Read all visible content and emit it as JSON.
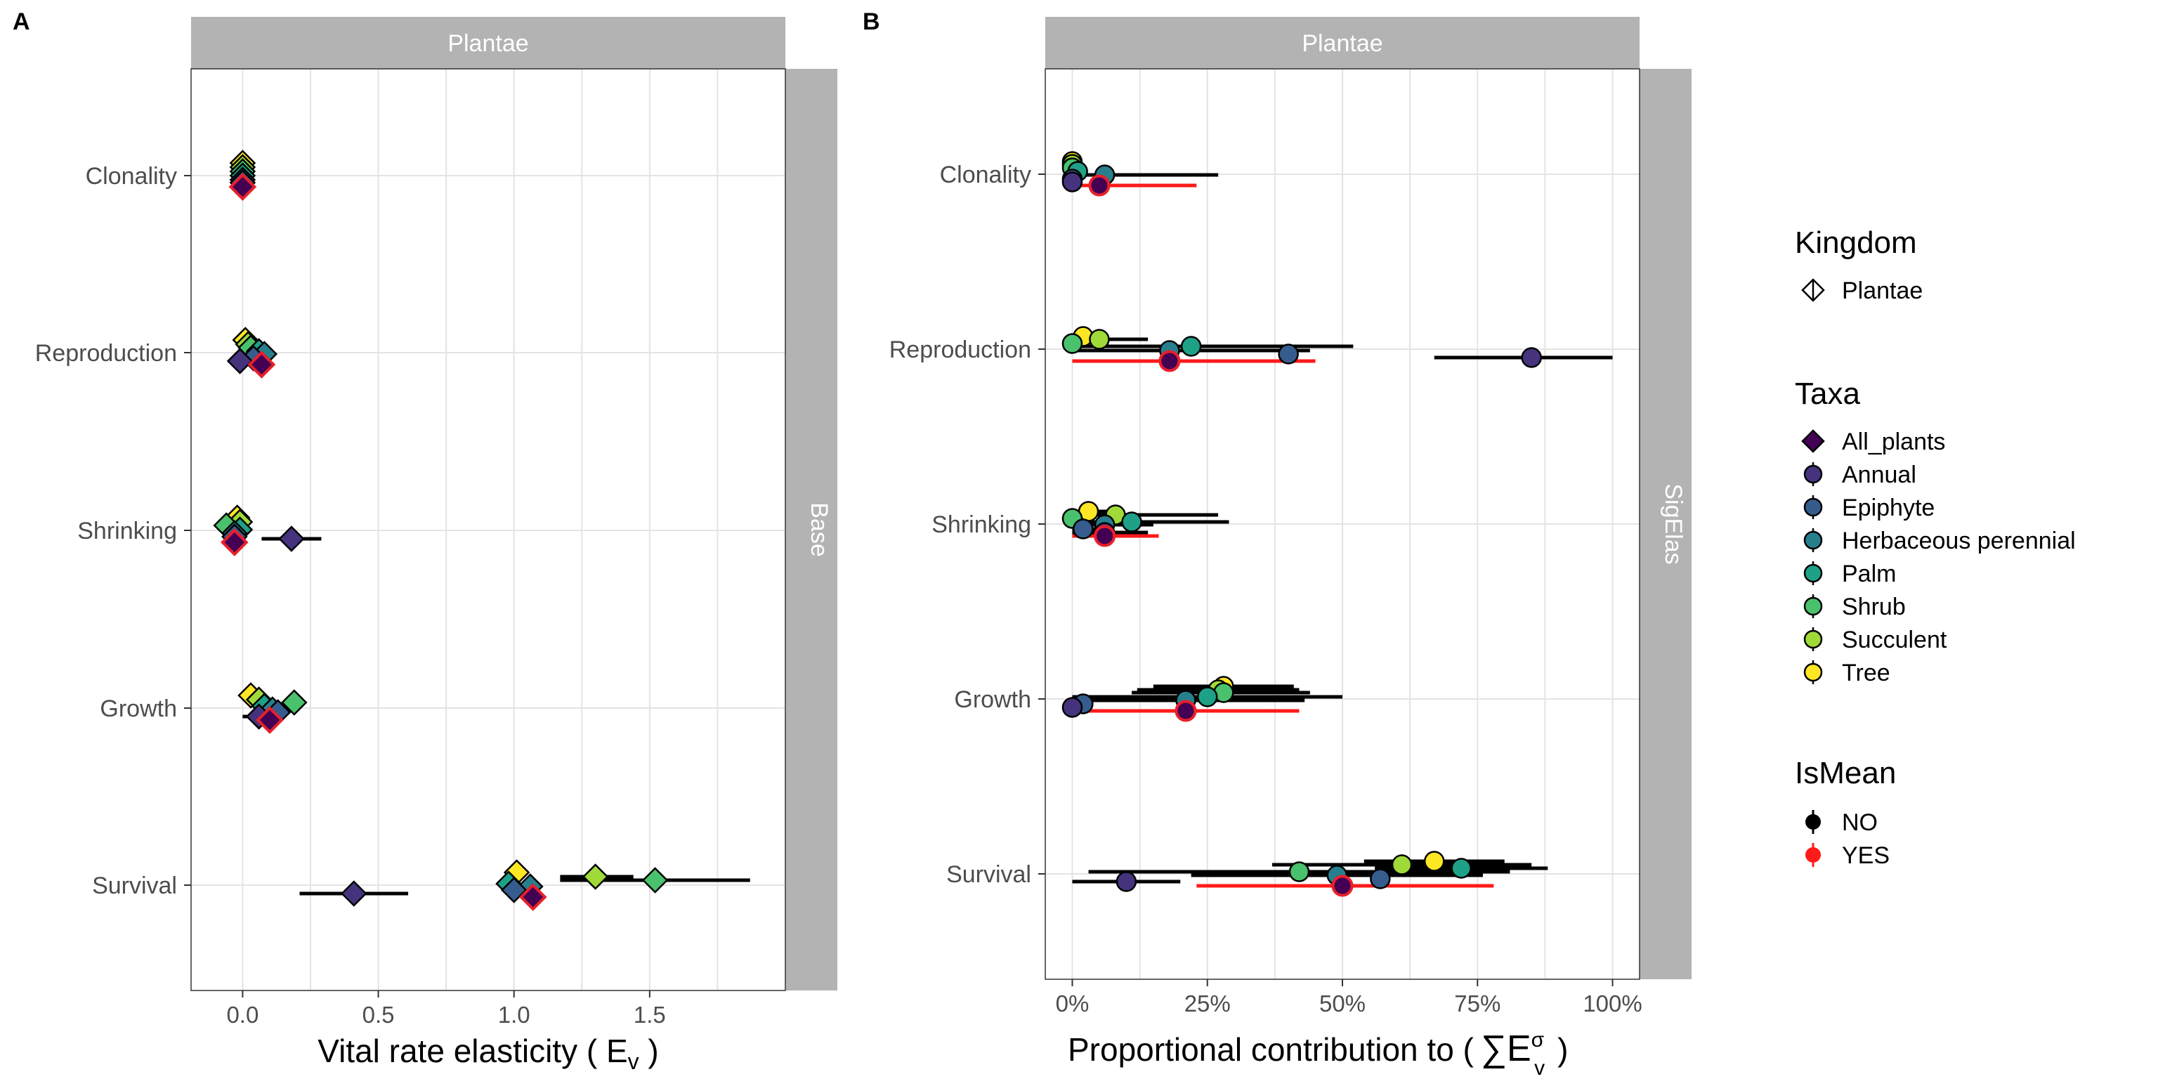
{
  "panel_labels": [
    "A",
    "B"
  ],
  "chart_data": [
    {
      "type": "scatter",
      "panel": "A",
      "strip_top": "Plantae",
      "strip_right": "Base",
      "xlabel": "Vital rate elasticity ( E",
      "xlabel_sub": "v",
      "xlabel_end": " )",
      "xlim": [
        -0.19,
        2.0
      ],
      "x_ticks": [
        0.0,
        0.5,
        1.0,
        1.5
      ],
      "x_tick_labels": [
        "0.0",
        "0.5",
        "1.0",
        "1.5"
      ],
      "categories": [
        "Clonality",
        "Reproduction",
        "Shrinking",
        "Growth",
        "Survival"
      ],
      "marker": "diamond",
      "points": [
        {
          "cat": "Clonality",
          "taxa": "Tree",
          "x": 0.0,
          "off": 0.18
        },
        {
          "cat": "Clonality",
          "taxa": "Succulent",
          "x": 0.0,
          "off": 0.12
        },
        {
          "cat": "Clonality",
          "taxa": "Shrub",
          "x": 0.0,
          "off": 0.06
        },
        {
          "cat": "Clonality",
          "taxa": "Palm",
          "x": 0.0,
          "off": 0.0
        },
        {
          "cat": "Clonality",
          "taxa": "Herbaceous perennial",
          "x": 0.0,
          "off": -0.06
        },
        {
          "cat": "Clonality",
          "taxa": "Epiphyte",
          "x": 0.0,
          "off": -0.1
        },
        {
          "cat": "Clonality",
          "taxa": "All_plants",
          "x": 0.0,
          "off": -0.16,
          "mean": true
        },
        {
          "cat": "Reproduction",
          "taxa": "Tree",
          "x": 0.01,
          "off": 0.18
        },
        {
          "cat": "Reproduction",
          "taxa": "Succulent",
          "x": 0.02,
          "off": 0.12
        },
        {
          "cat": "Reproduction",
          "taxa": "Shrub",
          "x": 0.03,
          "off": 0.07
        },
        {
          "cat": "Reproduction",
          "taxa": "Palm",
          "x": 0.06,
          "off": 0.02
        },
        {
          "cat": "Reproduction",
          "taxa": "Herbaceous perennial",
          "x": 0.08,
          "off": -0.02
        },
        {
          "cat": "Reproduction",
          "taxa": "Epiphyte",
          "x": 0.04,
          "off": -0.08
        },
        {
          "cat": "Reproduction",
          "taxa": "Annual",
          "x": -0.01,
          "off": -0.12
        },
        {
          "cat": "Reproduction",
          "taxa": "All_plants",
          "x": 0.07,
          "off": -0.17,
          "mean": true
        },
        {
          "cat": "Shrinking",
          "taxa": "Tree",
          "x": -0.02,
          "off": 0.18
        },
        {
          "cat": "Shrinking",
          "taxa": "Succulent",
          "x": -0.01,
          "off": 0.12
        },
        {
          "cat": "Shrinking",
          "taxa": "Shrub",
          "x": -0.06,
          "off": 0.07
        },
        {
          "cat": "Shrinking",
          "taxa": "Palm",
          "x": -0.01,
          "off": 0.01
        },
        {
          "cat": "Shrinking",
          "taxa": "Herbaceous perennial",
          "x": -0.03,
          "off": -0.04
        },
        {
          "cat": "Shrinking",
          "taxa": "Epiphyte",
          "x": -0.03,
          "off": -0.09
        },
        {
          "cat": "Shrinking",
          "taxa": "Annual",
          "x": 0.18,
          "off": -0.12,
          "lo": 0.07,
          "hi": 0.29
        },
        {
          "cat": "Shrinking",
          "taxa": "All_plants",
          "x": -0.03,
          "off": -0.17,
          "mean": true
        },
        {
          "cat": "Growth",
          "taxa": "Tree",
          "x": 0.03,
          "off": 0.18
        },
        {
          "cat": "Growth",
          "taxa": "Succulent",
          "x": 0.06,
          "off": 0.12
        },
        {
          "cat": "Growth",
          "taxa": "Shrub",
          "x": 0.19,
          "off": 0.08
        },
        {
          "cat": "Growth",
          "taxa": "Palm",
          "x": 0.08,
          "off": 0.03
        },
        {
          "cat": "Growth",
          "taxa": "Herbaceous perennial",
          "x": 0.11,
          "off": -0.02
        },
        {
          "cat": "Growth",
          "taxa": "Epiphyte",
          "x": 0.13,
          "off": -0.06
        },
        {
          "cat": "Growth",
          "taxa": "Annual",
          "x": 0.06,
          "off": -0.12,
          "lo": 0.0,
          "hi": 0.09
        },
        {
          "cat": "Growth",
          "taxa": "All_plants",
          "x": 0.1,
          "off": -0.17,
          "mean": true
        },
        {
          "cat": "Survival",
          "taxa": "Tree",
          "x": 1.01,
          "off": 0.18
        },
        {
          "cat": "Survival",
          "taxa": "Succulent",
          "x": 1.3,
          "off": 0.12,
          "lo": 1.17,
          "hi": 1.44
        },
        {
          "cat": "Survival",
          "taxa": "Shrub",
          "x": 1.52,
          "off": 0.07,
          "lo": 1.17,
          "hi": 1.87
        },
        {
          "cat": "Survival",
          "taxa": "Palm",
          "x": 0.98,
          "off": 0.02
        },
        {
          "cat": "Survival",
          "taxa": "Herbaceous perennial",
          "x": 1.06,
          "off": -0.02
        },
        {
          "cat": "Survival",
          "taxa": "Epiphyte",
          "x": 1.0,
          "off": -0.07
        },
        {
          "cat": "Survival",
          "taxa": "Annual",
          "x": 0.41,
          "off": -0.12,
          "lo": 0.21,
          "hi": 0.61
        },
        {
          "cat": "Survival",
          "taxa": "All_plants",
          "x": 1.07,
          "off": -0.17,
          "mean": true
        }
      ]
    },
    {
      "type": "scatter",
      "panel": "B",
      "strip_top": "Plantae",
      "strip_right": "SigElas",
      "xlabel": "Proportional contribution to (",
      "xlabel_sym": "∑E",
      "xlabel_sup": "σ",
      "xlabel_sub": "v",
      "xlabel_end": ")",
      "xlim": [
        -0.05,
        1.05
      ],
      "x_ticks": [
        0.0,
        0.25,
        0.5,
        0.75,
        1.0
      ],
      "x_tick_labels": [
        "0%",
        "25%",
        "50%",
        "75%",
        "100%"
      ],
      "categories": [
        "Clonality",
        "Reproduction",
        "Shrinking",
        "Growth",
        "Survival"
      ],
      "marker": "circle",
      "points": [
        {
          "cat": "Clonality",
          "taxa": "Tree",
          "x": 0.0,
          "off": 0.18
        },
        {
          "cat": "Clonality",
          "taxa": "Succulent",
          "x": 0.0,
          "off": 0.14
        },
        {
          "cat": "Clonality",
          "taxa": "Shrub",
          "x": 0.0,
          "off": 0.09
        },
        {
          "cat": "Clonality",
          "taxa": "Palm",
          "x": 0.01,
          "off": 0.04
        },
        {
          "cat": "Clonality",
          "taxa": "Herbaceous perennial",
          "x": 0.06,
          "off": -0.01,
          "lo": 0.0,
          "hi": 0.27
        },
        {
          "cat": "Clonality",
          "taxa": "Epiphyte",
          "x": 0.0,
          "off": -0.07
        },
        {
          "cat": "Clonality",
          "taxa": "Annual",
          "x": 0.0,
          "off": -0.11
        },
        {
          "cat": "Clonality",
          "taxa": "All_plants",
          "x": 0.05,
          "off": -0.16,
          "lo": 0.0,
          "hi": 0.23,
          "mean": true
        },
        {
          "cat": "Reproduction",
          "taxa": "Tree",
          "x": 0.02,
          "off": 0.18
        },
        {
          "cat": "Reproduction",
          "taxa": "Succulent",
          "x": 0.05,
          "off": 0.14,
          "lo": 0.0,
          "hi": 0.14
        },
        {
          "cat": "Reproduction",
          "taxa": "Shrub",
          "x": 0.0,
          "off": 0.08
        },
        {
          "cat": "Reproduction",
          "taxa": "Palm",
          "x": 0.22,
          "off": 0.04,
          "lo": 0.0,
          "hi": 0.52
        },
        {
          "cat": "Reproduction",
          "taxa": "Herbaceous perennial",
          "x": 0.18,
          "off": -0.02,
          "lo": 0.0,
          "hi": 0.44
        },
        {
          "cat": "Reproduction",
          "taxa": "Epiphyte",
          "x": 0.4,
          "off": -0.07
        },
        {
          "cat": "Reproduction",
          "taxa": "Annual",
          "x": 0.85,
          "off": -0.12,
          "lo": 0.67,
          "hi": 1.0
        },
        {
          "cat": "Reproduction",
          "taxa": "All_plants",
          "x": 0.18,
          "off": -0.17,
          "lo": 0.0,
          "hi": 0.45,
          "mean": true
        },
        {
          "cat": "Shrinking",
          "taxa": "Tree",
          "x": 0.03,
          "off": 0.18,
          "lo": 0.0,
          "hi": 0.07
        },
        {
          "cat": "Shrinking",
          "taxa": "Succulent",
          "x": 0.08,
          "off": 0.13,
          "lo": 0.0,
          "hi": 0.27
        },
        {
          "cat": "Shrinking",
          "taxa": "Shrub",
          "x": 0.0,
          "off": 0.08
        },
        {
          "cat": "Shrinking",
          "taxa": "Palm",
          "x": 0.11,
          "off": 0.03,
          "lo": 0.0,
          "hi": 0.29
        },
        {
          "cat": "Shrinking",
          "taxa": "Herbaceous perennial",
          "x": 0.06,
          "off": -0.01,
          "lo": 0.0,
          "hi": 0.15
        },
        {
          "cat": "Shrinking",
          "taxa": "Epiphyte",
          "x": 0.02,
          "off": -0.07,
          "lo": 0.0,
          "hi": 0.05
        },
        {
          "cat": "Shrinking",
          "taxa": "Annual",
          "x": 0.06,
          "off": -0.12,
          "lo": 0.0,
          "hi": 0.14
        },
        {
          "cat": "Shrinking",
          "taxa": "All_plants",
          "x": 0.06,
          "off": -0.17,
          "lo": 0.0,
          "hi": 0.16,
          "mean": true
        },
        {
          "cat": "Growth",
          "taxa": "Tree",
          "x": 0.28,
          "off": 0.18,
          "lo": 0.15,
          "hi": 0.41
        },
        {
          "cat": "Growth",
          "taxa": "Succulent",
          "x": 0.27,
          "off": 0.13,
          "lo": 0.12,
          "hi": 0.42
        },
        {
          "cat": "Growth",
          "taxa": "Shrub",
          "x": 0.28,
          "off": 0.09,
          "lo": 0.11,
          "hi": 0.44
        },
        {
          "cat": "Growth",
          "taxa": "Palm",
          "x": 0.25,
          "off": 0.03,
          "lo": 0.0,
          "hi": 0.5
        },
        {
          "cat": "Growth",
          "taxa": "Herbaceous perennial",
          "x": 0.21,
          "off": -0.02,
          "lo": 0.0,
          "hi": 0.43
        },
        {
          "cat": "Growth",
          "taxa": "Epiphyte",
          "x": 0.02,
          "off": -0.07
        },
        {
          "cat": "Growth",
          "taxa": "Annual",
          "x": 0.0,
          "off": -0.12
        },
        {
          "cat": "Growth",
          "taxa": "All_plants",
          "x": 0.21,
          "off": -0.17,
          "lo": 0.02,
          "hi": 0.42,
          "mean": true
        },
        {
          "cat": "Survival",
          "taxa": "Tree",
          "x": 0.67,
          "off": 0.18,
          "lo": 0.54,
          "hi": 0.8
        },
        {
          "cat": "Survival",
          "taxa": "Succulent",
          "x": 0.61,
          "off": 0.13,
          "lo": 0.37,
          "hi": 0.85
        },
        {
          "cat": "Survival",
          "taxa": "Shrub",
          "x": 0.42,
          "off": 0.03,
          "lo": 0.03,
          "hi": 0.81
        },
        {
          "cat": "Survival",
          "taxa": "Palm",
          "x": 0.72,
          "off": 0.08,
          "lo": 0.56,
          "hi": 0.88
        },
        {
          "cat": "Survival",
          "taxa": "Herbaceous perennial",
          "x": 0.49,
          "off": -0.02,
          "lo": 0.22,
          "hi": 0.76
        },
        {
          "cat": "Survival",
          "taxa": "Epiphyte",
          "x": 0.57,
          "off": -0.07
        },
        {
          "cat": "Survival",
          "taxa": "Annual",
          "x": 0.1,
          "off": -0.11,
          "lo": 0.0,
          "hi": 0.2
        },
        {
          "cat": "Survival",
          "taxa": "All_plants",
          "x": 0.5,
          "off": -0.17,
          "lo": 0.23,
          "hi": 0.78,
          "mean": true
        }
      ]
    }
  ],
  "legend": {
    "kingdom_title": "Kingdom",
    "kingdom_items": [
      "Plantae"
    ],
    "taxa_title": "Taxa",
    "taxa_items": [
      "All_plants",
      "Annual",
      "Epiphyte",
      "Herbaceous perennial",
      "Palm",
      "Shrub",
      "Succulent",
      "Tree"
    ],
    "ismean_title": "IsMean",
    "ismean_items": [
      "NO",
      "YES"
    ]
  },
  "colors": {
    "All_plants": "#440154",
    "Annual": "#46337e",
    "Epiphyte": "#365c8d",
    "Herbaceous perennial": "#277f8e",
    "Palm": "#1fa187",
    "Shrub": "#4ac16d",
    "Succulent": "#a0da39",
    "Tree": "#fde725",
    "mean_outline": "#e8202a",
    "strip_bg": "#b3b3b3",
    "grid": "#e3e3e3"
  }
}
